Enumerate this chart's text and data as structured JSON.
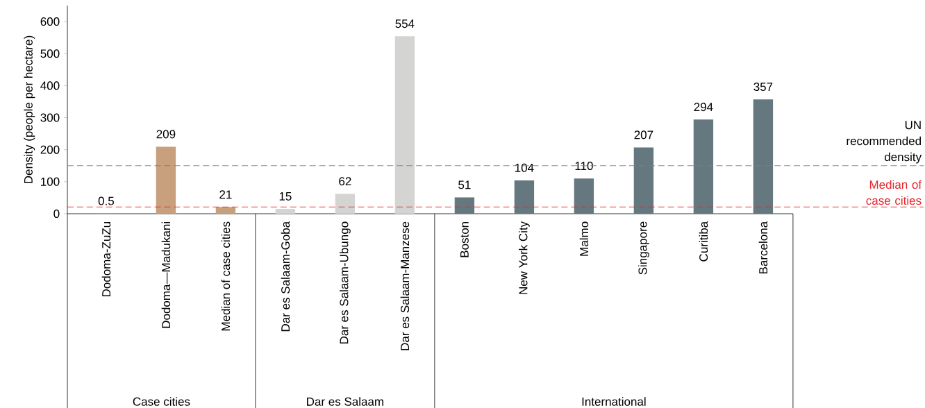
{
  "chart_data": {
    "type": "bar",
    "ylabel": "Density (people per hectare)",
    "categories": [
      "Dodoma-ZuZu",
      "Dodoma—Madukani",
      "Median of case cities",
      "Dar es Salaam-Goba",
      "Dar es Salaam-Ubungo",
      "Dar es Salaam-Manzese",
      "Boston",
      "New York City",
      "Malmo",
      "Singapore",
      "Curitiba",
      "Barcelona"
    ],
    "values": [
      0.5,
      209,
      21,
      15,
      62,
      554,
      51,
      104,
      110,
      207,
      294,
      357
    ],
    "colors": [
      "#c8a07e",
      "#c8a07e",
      "#c8a07e",
      "#d4d5d3",
      "#d4d5d3",
      "#d4d5d3",
      "#65787f",
      "#65787f",
      "#65787f",
      "#65787f",
      "#65787f",
      "#65787f"
    ],
    "ylim": [
      0,
      650
    ],
    "yticks": [
      0,
      100,
      200,
      300,
      400,
      500,
      600
    ],
    "data_labels": true,
    "grid": false,
    "ref_lines": [
      {
        "axis": "y",
        "value": 150,
        "label": "UN recommended density",
        "color": "#808080",
        "line_style": "dashed"
      },
      {
        "axis": "y",
        "value": 21,
        "label": "Median of case cities",
        "color": "#e8262b",
        "line_style": "dashed"
      }
    ],
    "annotations": [
      "Case cities",
      "Dar es Salaam",
      "International"
    ]
  }
}
